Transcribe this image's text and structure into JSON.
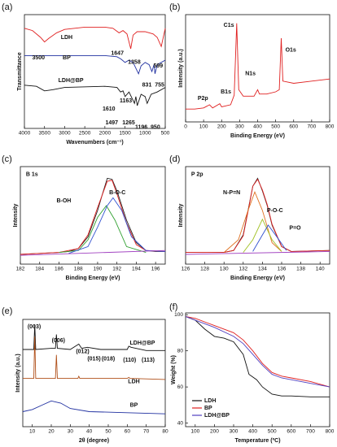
{
  "chart_data": [
    {
      "type": "line",
      "panel": "(a)",
      "xlabel": "Wavenumbers (cm⁻¹)",
      "ylabel": "Transmittance",
      "xlim": [
        4000,
        500
      ],
      "xticks": [
        4000,
        3500,
        3000,
        2500,
        2000,
        1500,
        1000,
        500
      ],
      "ylim": [
        0,
        100
      ],
      "series": [
        {
          "name": "LDH",
          "color": "#e02020",
          "x": [
            4000,
            3800,
            3600,
            3500,
            3400,
            3200,
            3000,
            2500,
            2000,
            1800,
            1647,
            1550,
            1450,
            1358,
            1300,
            1200,
            1000,
            800,
            700,
            599,
            500
          ],
          "values": [
            88,
            86,
            80,
            76,
            79,
            84,
            87,
            89,
            89,
            88,
            84,
            86,
            83,
            70,
            82,
            85,
            85,
            83,
            80,
            72,
            88
          ]
        },
        {
          "name": "BP",
          "color": "#2030a0",
          "x": [
            4000,
            3000,
            2000,
            1700,
            1600,
            1500,
            1400,
            1300,
            1163,
            1100,
            1000,
            900,
            831,
            780,
            755,
            700,
            600,
            500
          ],
          "values": [
            64,
            64,
            64,
            63,
            61,
            58,
            60,
            58,
            48,
            55,
            58,
            56,
            50,
            56,
            48,
            56,
            58,
            60
          ]
        },
        {
          "name": "LDH@BP",
          "color": "#111111",
          "x": [
            4000,
            3700,
            3500,
            3300,
            3000,
            2000,
            1700,
            1610,
            1550,
            1497,
            1400,
            1265,
            1230,
            1196,
            1100,
            1000,
            950,
            850,
            700,
            500
          ],
          "values": [
            38,
            37,
            33,
            34,
            36,
            37,
            36,
            32,
            33,
            28,
            32,
            22,
            28,
            20,
            30,
            28,
            22,
            30,
            32,
            36
          ]
        }
      ],
      "annotations": [
        "3500",
        "1647",
        "1358",
        "599",
        "1163",
        "831",
        "755",
        "1610",
        "1497",
        "1265",
        "1196",
        "950"
      ]
    },
    {
      "type": "line",
      "panel": "(b)",
      "xlabel": "Binding Energy (eV)",
      "ylabel": "Intensity (a.u.)",
      "xlim": [
        0,
        800
      ],
      "xticks": [
        0,
        100,
        200,
        300,
        400,
        500,
        600,
        700,
        800
      ],
      "ylim": [
        0,
        100
      ],
      "series": [
        {
          "color": "#e02020",
          "x": [
            0,
            50,
            100,
            133,
            150,
            190,
            200,
            250,
            270,
            284,
            295,
            320,
            380,
            400,
            410,
            450,
            500,
            520,
            531,
            540,
            600,
            700,
            800
          ],
          "values": [
            12,
            12,
            13,
            16,
            13,
            17,
            14,
            16,
            25,
            92,
            30,
            24,
            24,
            30,
            26,
            26,
            28,
            30,
            78,
            38,
            36,
            38,
            40
          ]
        }
      ],
      "annotations": [
        "C1s",
        "N1s",
        "O1s",
        "P2p",
        "B1s"
      ]
    },
    {
      "type": "line",
      "panel": "(c)",
      "xlabel": "Binding Energy (eV)",
      "ylabel": "Intensity",
      "xlim": [
        182,
        197
      ],
      "xticks": [
        182,
        184,
        186,
        188,
        190,
        192,
        194,
        196
      ],
      "ylim": [
        0,
        100
      ],
      "series": [
        {
          "color": "#222222",
          "x": [
            182,
            184,
            186,
            187,
            188,
            189,
            190,
            190.5,
            191,
            191.5,
            192,
            193,
            194,
            195,
            196,
            197
          ],
          "values": [
            10,
            11,
            12,
            13,
            16,
            28,
            55,
            72,
            88,
            87,
            75,
            45,
            22,
            14,
            13,
            13
          ]
        },
        {
          "color": "#e02020",
          "x": [
            182,
            186,
            188,
            189,
            190,
            191,
            191.5,
            192,
            193,
            194,
            195,
            197
          ],
          "values": [
            10,
            12,
            16,
            30,
            58,
            85,
            86,
            72,
            42,
            20,
            14,
            13
          ]
        },
        {
          "color": "#30a030",
          "x": [
            186,
            188,
            189,
            190,
            190.9,
            191.8,
            193,
            195
          ],
          "values": [
            12,
            14,
            25,
            48,
            60,
            45,
            18,
            12
          ]
        },
        {
          "color": "#3050d0",
          "x": [
            187,
            189,
            190,
            191,
            191.6,
            192.5,
            193.5,
            195,
            197
          ],
          "values": [
            11,
            18,
            38,
            60,
            68,
            55,
            28,
            14,
            13
          ]
        },
        {
          "color": "#a040c0",
          "x": [
            182,
            197
          ],
          "values": [
            9,
            14
          ]
        }
      ],
      "annotations": [
        "B 1s",
        "B-OH",
        "B-O-C"
      ]
    },
    {
      "type": "line",
      "panel": "(d)",
      "xlabel": "Binding Energy (eV)",
      "ylabel": "Intensity",
      "xlim": [
        126,
        141
      ],
      "xticks": [
        126,
        128,
        130,
        132,
        134,
        136,
        138,
        140
      ],
      "ylim": [
        0,
        100
      ],
      "series": [
        {
          "color": "#222222",
          "x": [
            126,
            130,
            131,
            132,
            132.5,
            133,
            133.5,
            134,
            134.5,
            135,
            136,
            137,
            141
          ],
          "values": [
            12,
            12,
            14,
            30,
            55,
            80,
            88,
            75,
            60,
            40,
            18,
            13,
            14
          ]
        },
        {
          "color": "#e02020",
          "x": [
            126,
            130,
            131,
            132,
            132.5,
            133,
            133.5,
            134,
            134.5,
            135,
            136,
            137,
            141
          ],
          "values": [
            12,
            12,
            14,
            29,
            54,
            80,
            87,
            76,
            61,
            41,
            18,
            13,
            14
          ]
        },
        {
          "color": "#e07020",
          "x": [
            130,
            131.5,
            132.5,
            133.2,
            134,
            135,
            136
          ],
          "values": [
            12,
            25,
            55,
            74,
            55,
            22,
            13
          ]
        },
        {
          "color": "#a0c020",
          "x": [
            132,
            133,
            134,
            135,
            136
          ],
          "values": [
            12,
            25,
            46,
            25,
            13
          ]
        },
        {
          "color": "#3050d0",
          "x": [
            133,
            134,
            134.6,
            135.5,
            136.5
          ],
          "values": [
            13,
            30,
            40,
            28,
            14
          ]
        },
        {
          "color": "#a040c0",
          "x": [
            126,
            141
          ],
          "values": [
            10,
            13
          ]
        }
      ],
      "annotations": [
        "P 2p",
        "N-P=N",
        "P-O-C",
        "P=O"
      ]
    },
    {
      "type": "line",
      "panel": "(e)",
      "xlabel": "2θ (degree)",
      "ylabel": "Intensity (a.u.)",
      "xlim": [
        5,
        80
      ],
      "xticks": [
        10,
        20,
        30,
        40,
        50,
        60,
        70,
        80
      ],
      "ylim": [
        0,
        100
      ],
      "series": [
        {
          "name": "LDH@BP",
          "color": "#111111",
          "x": [
            5,
            10,
            10.8,
            11.3,
            11.8,
            20,
            22.2,
            22.7,
            23.2,
            30,
            34.5,
            36,
            39,
            46,
            60,
            60.8,
            62,
            70,
            80
          ],
          "values": [
            72,
            72,
            72,
            95,
            72,
            73,
            73,
            86,
            73,
            72,
            77,
            73,
            74,
            72,
            72,
            75,
            74,
            71,
            71
          ]
        },
        {
          "name": "LDH",
          "color": "#b0501a",
          "x": [
            5,
            10,
            10.8,
            11.3,
            11.8,
            20,
            22.2,
            22.7,
            23.2,
            34,
            34.5,
            35,
            60,
            60.8,
            61.5,
            80
          ],
          "values": [
            45,
            45,
            45,
            84,
            45,
            45,
            45,
            67,
            45,
            45,
            47,
            45,
            45,
            46,
            45,
            44
          ]
        },
        {
          "name": "BP",
          "color": "#2030a0",
          "x": [
            5,
            10,
            15,
            20,
            25,
            30,
            40,
            60,
            80
          ],
          "values": [
            14,
            16,
            20,
            24,
            22,
            17,
            14,
            13,
            12
          ]
        }
      ],
      "annotations": [
        "(003)",
        "(006)",
        "(012)",
        "(015)",
        "(018)",
        "(110)",
        "(113)"
      ]
    },
    {
      "type": "line",
      "panel": "(f)",
      "xlabel": "Temperature (ºC)",
      "ylabel": "Weight (%)",
      "xlim": [
        50,
        800
      ],
      "xticks": [
        100,
        200,
        300,
        400,
        500,
        600,
        700,
        800
      ],
      "ylim": [
        38,
        101
      ],
      "yticks": [
        40,
        60,
        80,
        100
      ],
      "legend": "lower left",
      "series": [
        {
          "name": "LDH",
          "color": "#111111",
          "x": [
            50,
            100,
            150,
            200,
            250,
            300,
            350,
            380,
            420,
            450,
            500,
            550,
            600,
            700,
            800
          ],
          "values": [
            99,
            97,
            92,
            88,
            87,
            85,
            78,
            67,
            64,
            60,
            56,
            55,
            55,
            54.5,
            54.5
          ]
        },
        {
          "name": "BP",
          "color": "#e02020",
          "x": [
            50,
            100,
            200,
            300,
            350,
            400,
            450,
            500,
            550,
            600,
            700,
            800
          ],
          "values": [
            99,
            98,
            94,
            90,
            86,
            80,
            73,
            68,
            66,
            65,
            63,
            60
          ]
        },
        {
          "name": "LDH@BP",
          "color": "#5040c0",
          "x": [
            50,
            100,
            200,
            300,
            350,
            400,
            450,
            500,
            550,
            600,
            700,
            800
          ],
          "values": [
            99,
            97,
            93,
            88,
            84,
            78,
            72,
            67,
            65,
            64,
            62,
            60
          ]
        }
      ]
    }
  ]
}
